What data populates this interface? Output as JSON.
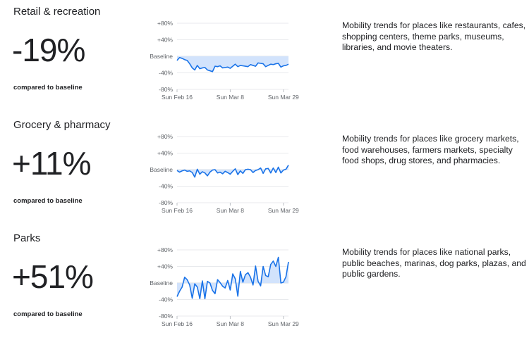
{
  "sections": [
    {
      "title": "Retail & recreation",
      "value": "-19%",
      "subtitle": "compared to baseline",
      "description": "Mobility trends for places like restaurants, cafes, shopping centers, theme parks, museums, libraries, and movie theaters.",
      "chart_data": {
        "type": "area",
        "y_tick_labels": [
          "+80%",
          "+40%",
          "Baseline",
          "-40%",
          "-80%"
        ],
        "y_ticks": [
          80,
          40,
          0,
          -40,
          -80
        ],
        "ylim": [
          -80,
          80
        ],
        "x_tick_labels": [
          "Sun Feb 16",
          "Sun Mar 8",
          "Sun Mar 29"
        ],
        "x_tick_positions": [
          0,
          21,
          42
        ],
        "values": [
          -10,
          -3,
          -5,
          -8,
          -10,
          -18,
          -28,
          -33,
          -22,
          -30,
          -28,
          -27,
          -33,
          -35,
          -37,
          -24,
          -25,
          -23,
          -28,
          -27,
          -26,
          -29,
          -24,
          -19,
          -25,
          -22,
          -23,
          -24,
          -25,
          -20,
          -22,
          -24,
          -16,
          -17,
          -18,
          -25,
          -22,
          -19,
          -20,
          -18,
          -17,
          -26,
          -23,
          -22,
          -19
        ],
        "line_color": "#1a73e8",
        "fill_color": "#d2e3fc"
      }
    },
    {
      "title": "Grocery & pharmacy",
      "value": "+11%",
      "subtitle": "compared to baseline",
      "description": "Mobility trends for places like grocery markets, food warehouses, farmers markets, specialty food shops, drug stores, and pharmacies.",
      "chart_data": {
        "type": "area",
        "y_tick_labels": [
          "+80%",
          "+40%",
          "Baseline",
          "-40%",
          "-80%"
        ],
        "y_ticks": [
          80,
          40,
          0,
          -40,
          -80
        ],
        "ylim": [
          -80,
          80
        ],
        "x_tick_labels": [
          "Sun Feb 16",
          "Sun Mar 8",
          "Sun Mar 29"
        ],
        "x_tick_positions": [
          0,
          21,
          42
        ],
        "values": [
          -2,
          -6,
          -3,
          -1,
          -4,
          -3,
          -7,
          -18,
          1,
          -11,
          -5,
          -8,
          -15,
          -6,
          -1,
          0,
          -8,
          -6,
          -10,
          -4,
          -7,
          -11,
          -4,
          2,
          -12,
          -3,
          -9,
          0,
          1,
          0,
          -7,
          -2,
          0,
          4,
          -9,
          2,
          3,
          -8,
          4,
          -7,
          6,
          -8,
          -1,
          1,
          11
        ],
        "line_color": "#1a73e8",
        "fill_color": "#d2e3fc"
      }
    },
    {
      "title": "Parks",
      "value": "+51%",
      "subtitle": "compared to baseline",
      "description": "Mobility trends for places like national parks, public beaches, marinas, dog parks, plazas, and public gardens.",
      "chart_data": {
        "type": "area",
        "y_tick_labels": [
          "+80%",
          "+40%",
          "Baseline",
          "-40%",
          "-80%"
        ],
        "y_ticks": [
          80,
          40,
          0,
          -40,
          -80
        ],
        "ylim": [
          -80,
          80
        ],
        "x_tick_labels": [
          "Sun Feb 16",
          "Sun Mar 8",
          "Sun Mar 29"
        ],
        "x_tick_positions": [
          0,
          21,
          42
        ],
        "values": [
          -33,
          -20,
          -10,
          14,
          8,
          -5,
          -37,
          -2,
          -10,
          -38,
          5,
          -38,
          4,
          0,
          -18,
          -26,
          8,
          1,
          -8,
          -12,
          6,
          -17,
          22,
          10,
          -32,
          28,
          2,
          20,
          25,
          14,
          -5,
          41,
          4,
          -7,
          40,
          18,
          15,
          45,
          53,
          40,
          62,
          0,
          2,
          15,
          51
        ],
        "line_color": "#1a73e8",
        "fill_color": "#d2e3fc"
      }
    }
  ]
}
